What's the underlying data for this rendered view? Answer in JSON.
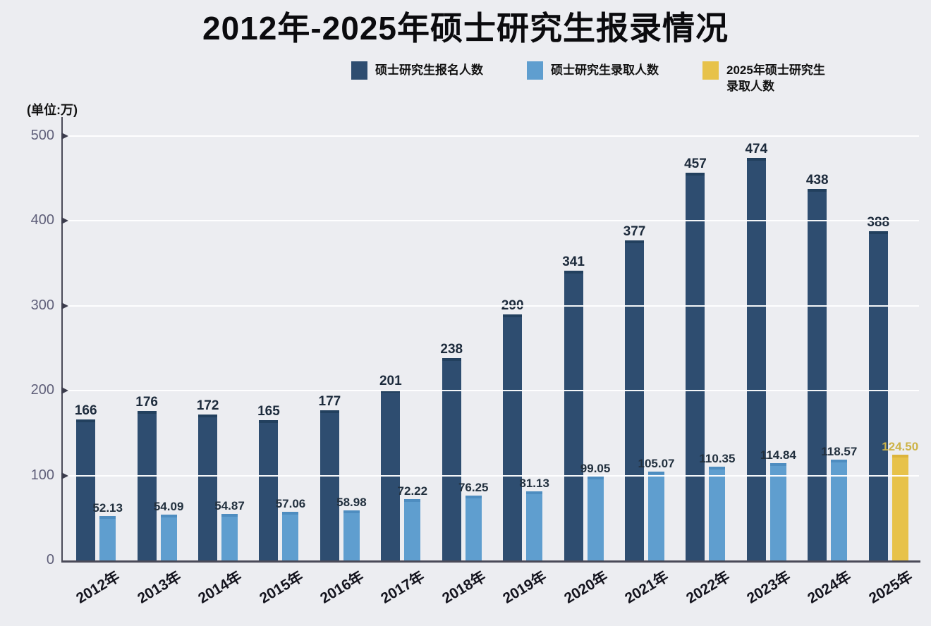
{
  "title": "2012年-2025年硕士研究生报录情况",
  "unit_label": "(单位:万)",
  "legend": [
    {
      "label": "硕士研究生报名人数",
      "color": "#2e4d70"
    },
    {
      "label": "硕士研究生录取人数",
      "color": "#5f9ecf"
    },
    {
      "label": "2025年硕士研究生\n录取人数",
      "color": "#e7c24a"
    }
  ],
  "chart_data": {
    "type": "bar",
    "title": "2012年-2025年硕士研究生报录情况",
    "ylabel": "(单位:万)",
    "xlabel": "",
    "ylim": [
      0,
      500
    ],
    "yticks": [
      0,
      100,
      200,
      300,
      400,
      500
    ],
    "grid": true,
    "legend_position": "top",
    "categories": [
      "2012年",
      "2013年",
      "2014年",
      "2015年",
      "2016年",
      "2017年",
      "2018年",
      "2019年",
      "2020年",
      "2021年",
      "2022年",
      "2023年",
      "2024年",
      "2025年"
    ],
    "series": [
      {
        "name": "硕士研究生报名人数",
        "color": "#2e4d70",
        "cap_color": "#22405e",
        "label_color": "#1d2b3c",
        "values": [
          166,
          176,
          172,
          165,
          177,
          201,
          238,
          290,
          341,
          377,
          457,
          474,
          438,
          388
        ],
        "labels": [
          "166",
          "176",
          "172",
          "165",
          "177",
          "201",
          "238",
          "290",
          "341",
          "377",
          "457",
          "474",
          "438",
          "388"
        ]
      },
      {
        "name": "硕士研究生录取人数",
        "color": "#5f9ecf",
        "cap_color": "#4e8dc0",
        "label_color": "#22303e",
        "values": [
          52.13,
          54.09,
          54.87,
          57.06,
          58.98,
          72.22,
          76.25,
          81.13,
          99.05,
          105.07,
          110.35,
          114.84,
          118.57,
          null
        ],
        "labels": [
          "52.13",
          "54.09",
          "54.87",
          "57.06",
          "58.98",
          "72.22",
          "76.25",
          "81.13",
          "99.05",
          "105.07",
          "110.35",
          "114.84",
          "118.57",
          null
        ]
      },
      {
        "name": "2025年硕士研究生录取人数",
        "color": "#e7c24a",
        "cap_color": "#dcb43c",
        "label_color": "#cdb348",
        "values": [
          null,
          null,
          null,
          null,
          null,
          null,
          null,
          null,
          null,
          null,
          null,
          null,
          null,
          124.5
        ],
        "labels": [
          null,
          null,
          null,
          null,
          null,
          null,
          null,
          null,
          null,
          null,
          null,
          null,
          null,
          "124.50"
        ]
      }
    ]
  }
}
